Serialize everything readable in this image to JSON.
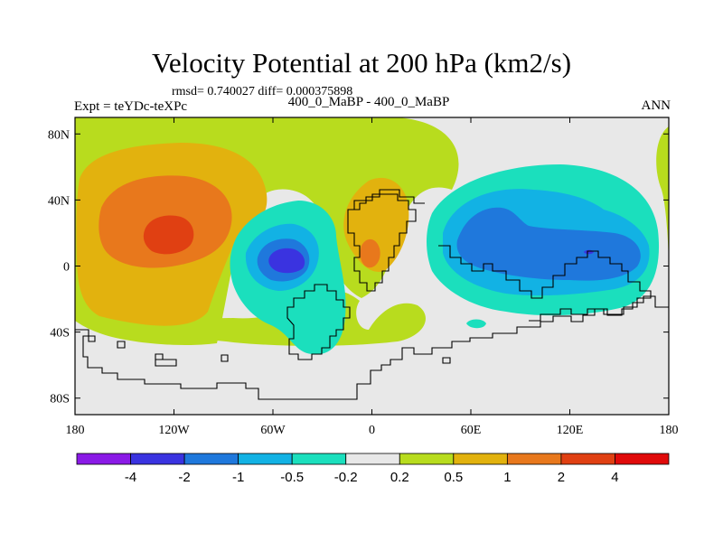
{
  "title": "Velocity Potential at 200 hPa (km2/s)",
  "stats": "rmsd= 0.740027 diff= 0.000375898",
  "left_label": "Expt = teYDc-teXPc",
  "center_label": "400_0_MaBP - 400_0_MaBP",
  "right_label": "ANN",
  "map": {
    "projection": "cylindrical-equidistant",
    "lon_range": [
      -180,
      180
    ],
    "lat_range": [
      -90,
      90
    ],
    "x_ticks": [
      {
        "lon": -180,
        "label": "180"
      },
      {
        "lon": -120,
        "label": "120W"
      },
      {
        "lon": -60,
        "label": "60W"
      },
      {
        "lon": 0,
        "label": "0"
      },
      {
        "lon": 60,
        "label": "60E"
      },
      {
        "lon": 120,
        "label": "120E"
      },
      {
        "lon": 180,
        "label": "180"
      }
    ],
    "y_ticks": [
      {
        "lat": 80,
        "label": "80N"
      },
      {
        "lat": 40,
        "label": "40N"
      },
      {
        "lat": 0,
        "label": "0"
      },
      {
        "lat": -40,
        "label": "40S"
      },
      {
        "lat": -80,
        "label": "80S"
      }
    ]
  },
  "colorbar": {
    "colors": [
      "#8a1ae6",
      "#3a33e0",
      "#1f78dc",
      "#12b2e4",
      "#1bdfbd",
      "#e8e8e8",
      "#b8dc1e",
      "#e2b20e",
      "#e8781c",
      "#e04012",
      "#e00a0a"
    ],
    "labels": [
      "-4",
      "-2",
      "-1",
      "-0.5",
      "-0.2",
      "0.2",
      "0.5",
      "1",
      "2",
      "4"
    ]
  },
  "chart_data": {
    "type": "heatmap",
    "variable": "Velocity Potential at 200 hPa",
    "units": "km2/s",
    "contour_levels": [
      -4,
      -2,
      -1,
      -0.5,
      -0.2,
      0.2,
      0.5,
      1,
      2,
      4
    ],
    "features": [
      {
        "lon": -130,
        "lat": 20,
        "value": 2.5,
        "label": "positive maximum (eastern Pacific)"
      },
      {
        "lon": -50,
        "lat": 3,
        "value": -2.5,
        "label": "negative minimum (South America / tropical Atlantic)"
      },
      {
        "lon": -2,
        "lat": 8,
        "value": 1.2,
        "label": "positive maximum (Africa)"
      },
      {
        "lon": 126,
        "lat": 10,
        "value": -2.0,
        "label": "negative minimum (western Pacific)"
      }
    ]
  }
}
